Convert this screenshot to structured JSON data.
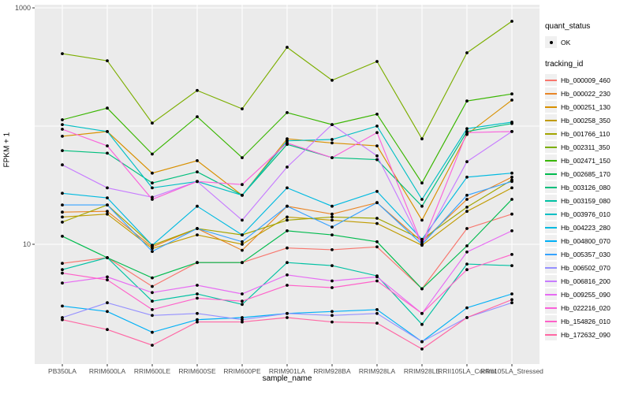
{
  "figure": {
    "background": "#ffffff",
    "panel_background": "#ebebeb",
    "gridline_color": "#ffffff",
    "point_color": "#000000",
    "axis_text_color": "#4d4d4d"
  },
  "legend": {
    "quant_status_title": "quant_status",
    "quant_status_items": [
      {
        "label": "OK",
        "symbol": "point"
      }
    ],
    "tracking_id_title": "tracking_id"
  },
  "chart_data": {
    "type": "line",
    "title": "",
    "xlabel": "sample_name",
    "ylabel": "FPKM + 1",
    "y_scale": "log10",
    "ylim": [
      1,
      1030
    ],
    "y_ticks": [
      {
        "label": "1000",
        "value": 1000
      },
      {
        "label": "10",
        "value": 10
      }
    ],
    "y_minor_gridlines": [
      100
    ],
    "legend_position": "right",
    "grid": true,
    "categories": [
      "PB350LA",
      "RRIM600LA",
      "RRIM600LE",
      "RRIM600SE",
      "RRIM600PE",
      "RRIM901LA",
      "RRIM928BA",
      "RRIM928LA",
      "RRIM928LE",
      "RRII105LA_Control",
      "RRII105LA_Stressed"
    ],
    "series": [
      {
        "name": "Hb_000009_460",
        "color": "#F8766D",
        "values": [
          6.9,
          7.7,
          4.4,
          7.0,
          7.0,
          9.3,
          9.0,
          9.5,
          4.2,
          13.6,
          18
        ]
      },
      {
        "name": "Hb_000022_230",
        "color": "#E88526",
        "values": [
          18.7,
          19,
          9.5,
          13.6,
          8.9,
          21,
          18,
          22.5,
          10.5,
          24,
          37
        ]
      },
      {
        "name": "Hb_000251_130",
        "color": "#D89000",
        "values": [
          82,
          90,
          40,
          51,
          26,
          78,
          72,
          68,
          16,
          85,
          166
        ]
      },
      {
        "name": "Hb_000258_350",
        "color": "#C09B00",
        "values": [
          17,
          18,
          9.2,
          12,
          10,
          17,
          16,
          15,
          9.8,
          19,
          30
        ]
      },
      {
        "name": "Hb_001766_110",
        "color": "#A3A500",
        "values": [
          15.4,
          21.5,
          9.8,
          13.6,
          12,
          16,
          17,
          16.6,
          11,
          20.6,
          35
        ]
      },
      {
        "name": "Hb_002311_350",
        "color": "#7CAE00",
        "values": [
          410,
          357,
          106,
          200,
          140,
          464,
          244,
          352,
          78,
          417,
          770
        ]
      },
      {
        "name": "Hb_002471_150",
        "color": "#39B600",
        "values": [
          113,
          142,
          58,
          120,
          54,
          130,
          103,
          126,
          33,
          163,
          187
        ]
      },
      {
        "name": "Hb_002685_170",
        "color": "#00BB4E",
        "values": [
          11.7,
          7.7,
          5.2,
          7.0,
          7.0,
          13,
          12,
          10.5,
          4.2,
          9.7,
          24
        ]
      },
      {
        "name": "Hb_003126_080",
        "color": "#00BF7D",
        "values": [
          62,
          59,
          33,
          41,
          26,
          70,
          54,
          52,
          21,
          90,
          105
        ]
      },
      {
        "name": "Hb_003159_080",
        "color": "#00C1A3",
        "values": [
          6.1,
          7.7,
          3.3,
          3.8,
          3.1,
          7.0,
          6.6,
          5.4,
          2.1,
          6.8,
          6.6
        ]
      },
      {
        "name": "Hb_003976_010",
        "color": "#00BFC4",
        "values": [
          103,
          90,
          30,
          34,
          26,
          75,
          77,
          100,
          24,
          95,
          108
        ]
      },
      {
        "name": "Hb_004223_280",
        "color": "#00BAE0",
        "values": [
          27,
          24.7,
          9.8,
          21,
          12,
          30,
          21,
          28,
          11,
          37,
          40
        ]
      },
      {
        "name": "Hb_004800_070",
        "color": "#00B0F6",
        "values": [
          3.0,
          2.7,
          1.8,
          2.3,
          2.4,
          2.6,
          2.7,
          2.8,
          1.5,
          2.9,
          3.8
        ]
      },
      {
        "name": "Hb_005357_030",
        "color": "#35A2FF",
        "values": [
          21.5,
          21.5,
          8.7,
          13.6,
          10.5,
          21,
          14,
          22.5,
          10,
          26,
          34
        ]
      },
      {
        "name": "Hb_006502_070",
        "color": "#9590FF",
        "values": [
          2.4,
          3.2,
          2.5,
          2.6,
          2.3,
          2.6,
          2.5,
          2.6,
          1.5,
          2.4,
          3.2
        ]
      },
      {
        "name": "Hb_006816_200",
        "color": "#C77CFF",
        "values": [
          47,
          30,
          25,
          34,
          16,
          45,
          103,
          56,
          10,
          50,
          90
        ]
      },
      {
        "name": "Hb_009255_090",
        "color": "#E76BF3",
        "values": [
          4.7,
          5.3,
          3.9,
          4.5,
          3.8,
          5.5,
          4.9,
          5.3,
          2.6,
          8.6,
          13
        ]
      },
      {
        "name": "Hb_022216_020",
        "color": "#FA62DB",
        "values": [
          94,
          68,
          24,
          34,
          32,
          72,
          54,
          88,
          10,
          88,
          90
        ]
      },
      {
        "name": "Hb_154826_010",
        "color": "#FF61C9",
        "values": [
          5.7,
          5.0,
          2.8,
          3.5,
          3.3,
          4.5,
          4.3,
          4.9,
          2.6,
          6.1,
          8.2
        ]
      },
      {
        "name": "Hb_172632_090",
        "color": "#FF67A4",
        "values": [
          2.3,
          1.9,
          1.4,
          2.2,
          2.2,
          2.4,
          2.2,
          2.15,
          1.3,
          2.4,
          3.4
        ]
      }
    ]
  }
}
